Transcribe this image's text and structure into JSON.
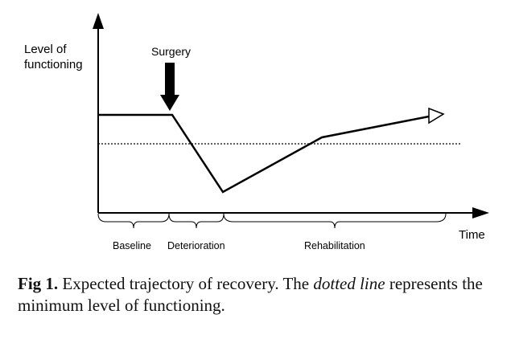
{
  "diagram": {
    "y_axis_label_line1": "Level of",
    "y_axis_label_line2": "functioning",
    "x_axis_label": "Time",
    "event_label": "Surgery",
    "phases": [
      "Baseline",
      "Deterioration",
      "Rehabilitation"
    ],
    "line_style_threshold": "dotted",
    "colors": {
      "line": "#000000",
      "background": "#ffffff"
    }
  },
  "caption": {
    "figure_label": "Fig 1.",
    "text_before": " Expected trajectory of recovery. The ",
    "emphasis": "dotted line",
    "text_after": " represents the minimum level of functioning."
  }
}
